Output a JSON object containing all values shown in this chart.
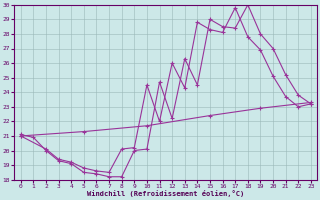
{
  "xlabel": "Windchill (Refroidissement éolien,°C)",
  "background_color": "#cce8e8",
  "grid_color": "#b0c8c8",
  "line_color": "#993399",
  "xlim": [
    -0.5,
    23.5
  ],
  "ylim": [
    18,
    30
  ],
  "yticks": [
    18,
    19,
    20,
    21,
    22,
    23,
    24,
    25,
    26,
    27,
    28,
    29,
    30
  ],
  "xticks": [
    0,
    1,
    2,
    3,
    4,
    5,
    6,
    7,
    8,
    9,
    10,
    11,
    12,
    13,
    14,
    15,
    16,
    17,
    18,
    19,
    20,
    21,
    22,
    23
  ],
  "line1_x": [
    0,
    1,
    2,
    3,
    4,
    5,
    6,
    7,
    8,
    9,
    10,
    11,
    12,
    13,
    14,
    15,
    16,
    17,
    18,
    19,
    20,
    21,
    22,
    23
  ],
  "line1_y": [
    21.1,
    20.9,
    20.0,
    19.3,
    19.1,
    18.5,
    18.4,
    18.2,
    18.2,
    20.0,
    20.1,
    24.7,
    22.2,
    26.3,
    24.5,
    29.0,
    28.5,
    28.4,
    30.0,
    28.0,
    27.0,
    25.2,
    23.8,
    23.2
  ],
  "line2_x": [
    0,
    2,
    3,
    4,
    5,
    6,
    7,
    8,
    9,
    10,
    11,
    12,
    13,
    14,
    15,
    16,
    17,
    18,
    19,
    20,
    21,
    22,
    23
  ],
  "line2_y": [
    21.0,
    20.1,
    19.4,
    19.2,
    18.8,
    18.6,
    18.5,
    20.1,
    20.2,
    24.5,
    22.0,
    26.0,
    24.3,
    28.8,
    28.3,
    28.1,
    29.8,
    27.8,
    26.9,
    25.1,
    23.7,
    23.0,
    23.2
  ],
  "line3_x": [
    0,
    5,
    10,
    15,
    19,
    23
  ],
  "line3_y": [
    21.0,
    21.3,
    21.7,
    22.4,
    22.9,
    23.3
  ]
}
